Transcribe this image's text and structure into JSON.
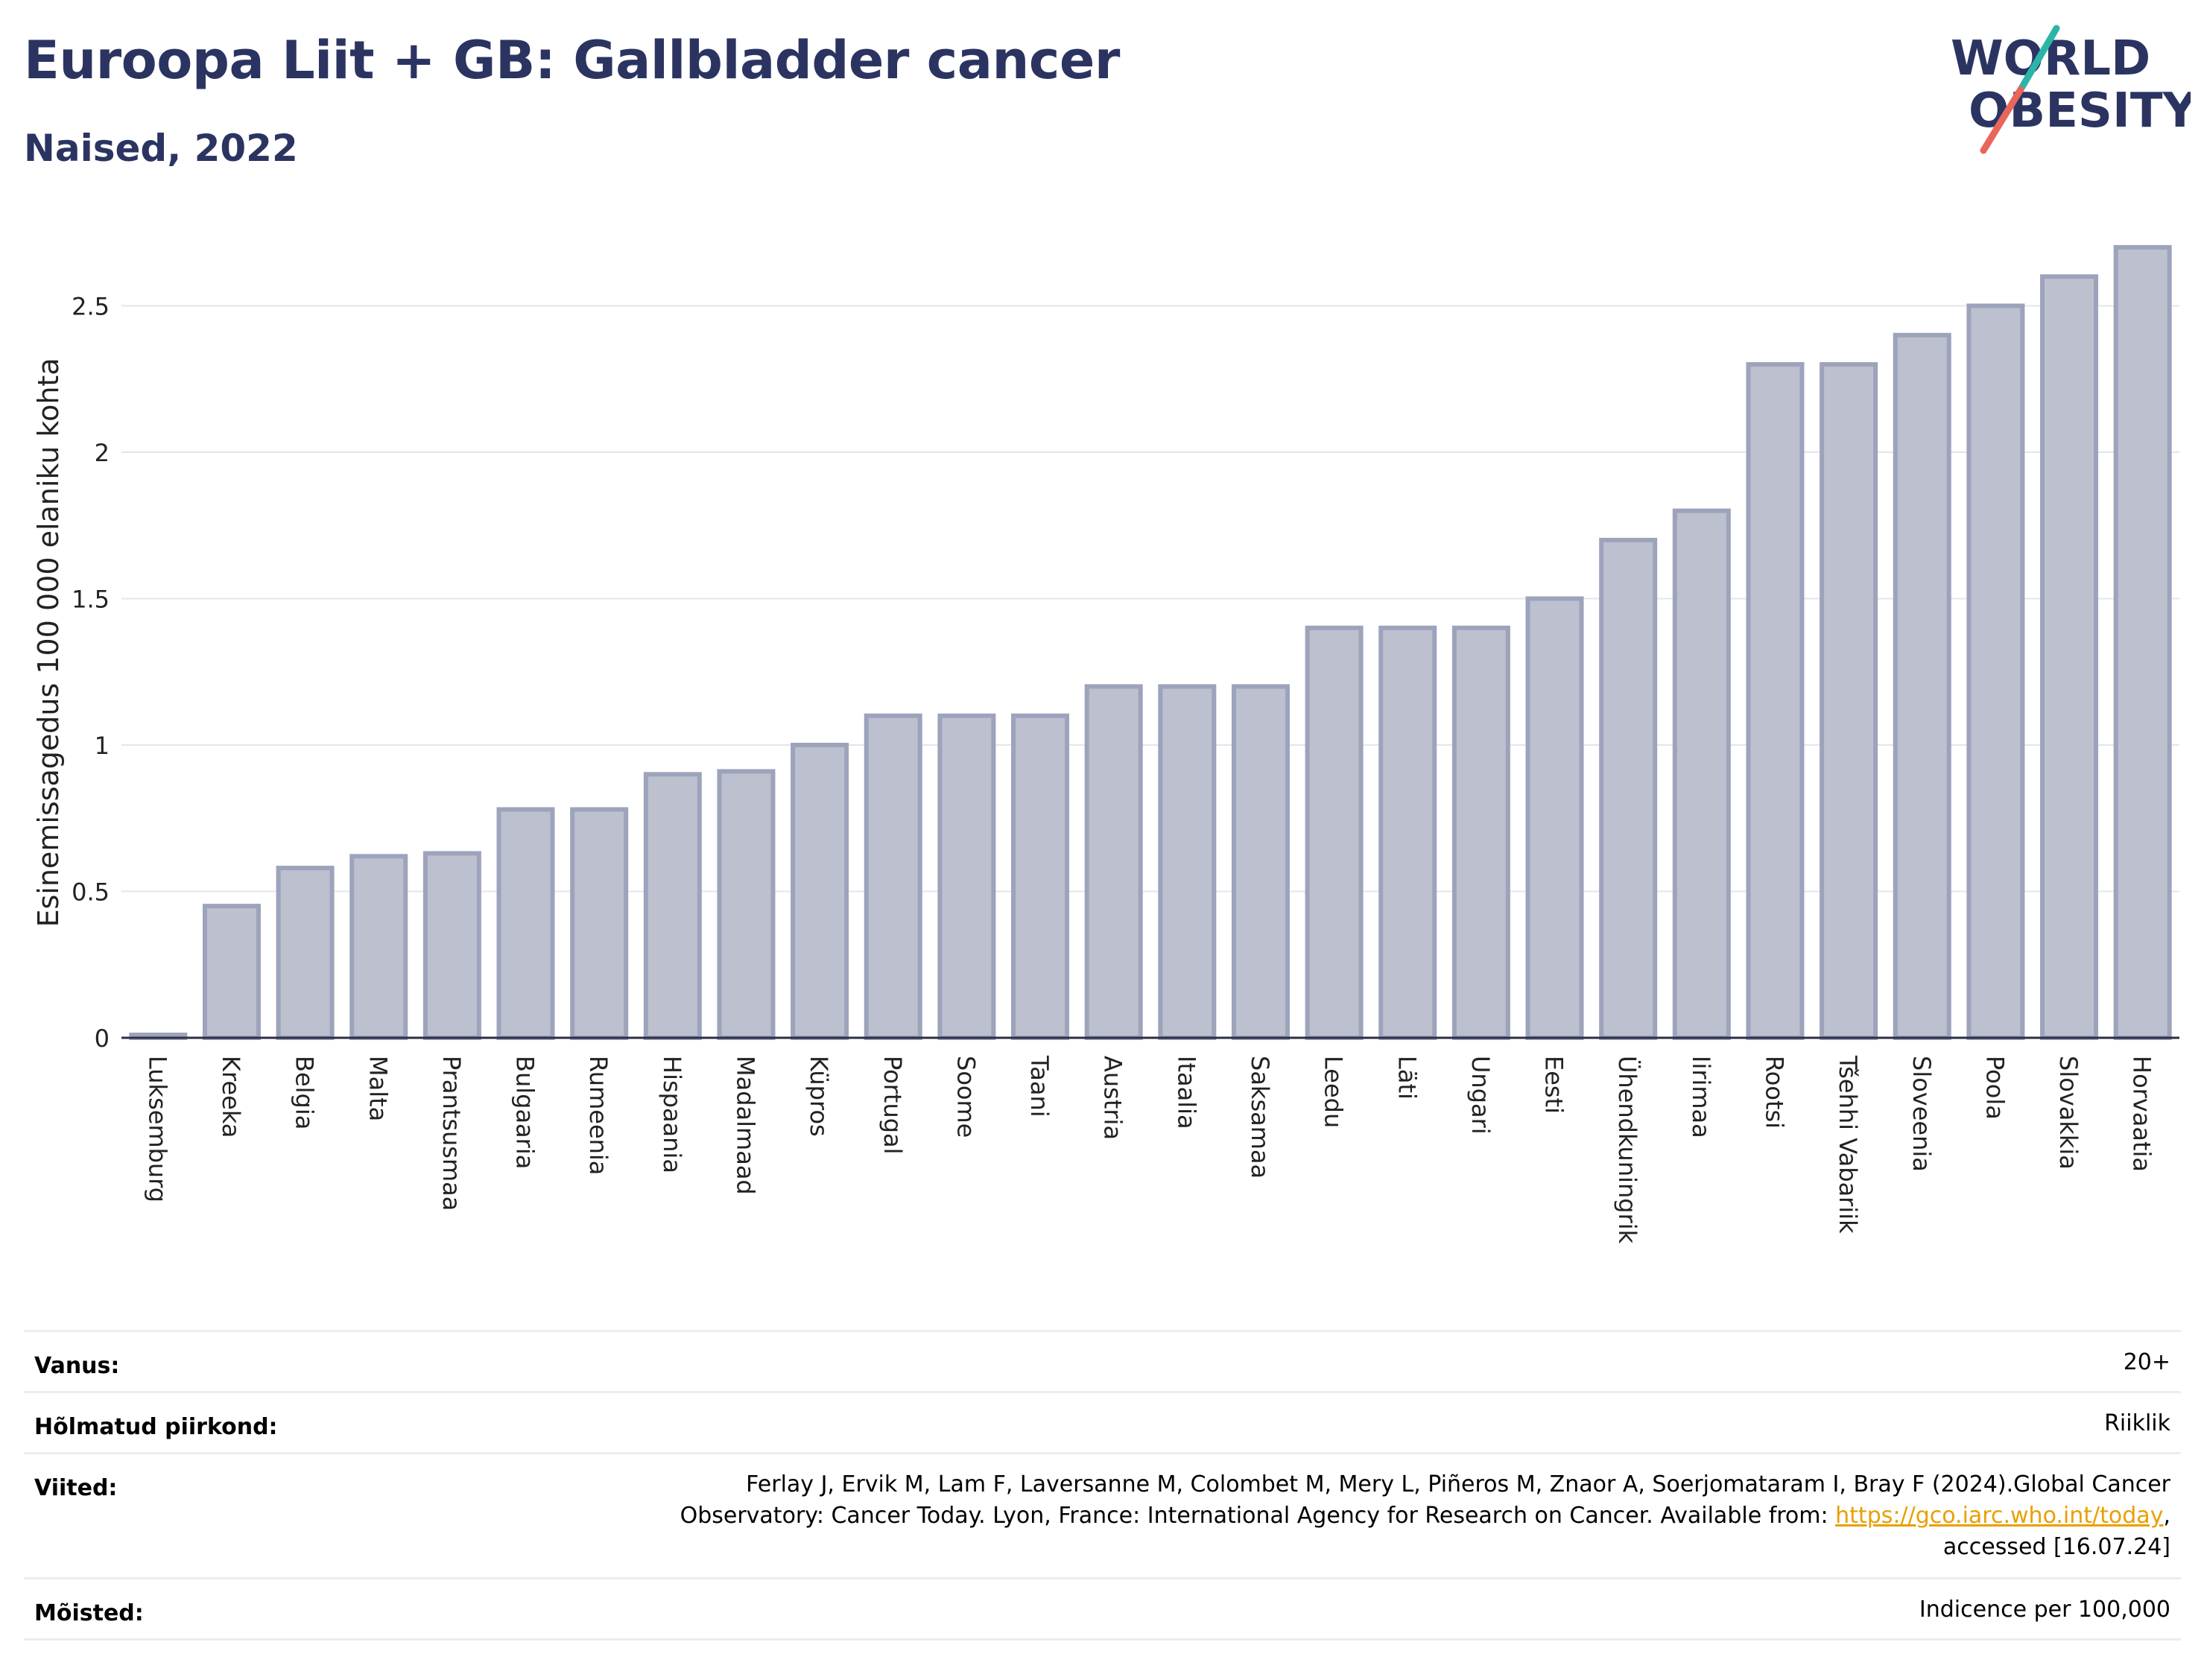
{
  "header": {
    "title": "Euroopa Liit + GB: Gallbladder cancer",
    "subtitle": "Naised, 2022"
  },
  "logo": {
    "line1": "WORLD",
    "line2": "OBESITY",
    "slash_colors": [
      "#2bb5a8",
      "#e8665a"
    ]
  },
  "chart_data": {
    "type": "bar",
    "categories": [
      "Luksemburg",
      "Kreeka",
      "Belgia",
      "Malta",
      "Prantsusmaa",
      "Bulgaaria",
      "Rumeenia",
      "Hispaania",
      "Madalmaad",
      "Küpros",
      "Portugal",
      "Soome",
      "Taani",
      "Austria",
      "Itaalia",
      "Saksamaa",
      "Leedu",
      "Läti",
      "Ungari",
      "Eesti",
      "Ühendkuningrik",
      "Iirimaa",
      "Rootsi",
      "Tšehhi Vabariik",
      "Sloveenia",
      "Poola",
      "Slovakkia",
      "Horvaatia"
    ],
    "values": [
      0.01,
      0.45,
      0.58,
      0.62,
      0.63,
      0.78,
      0.78,
      0.9,
      0.91,
      1.0,
      1.1,
      1.1,
      1.1,
      1.2,
      1.2,
      1.2,
      1.4,
      1.4,
      1.4,
      1.5,
      1.7,
      1.8,
      2.3,
      2.3,
      2.4,
      2.5,
      2.6,
      2.7
    ],
    "ylabel": "Esinemissagedus 100 000 elaniku kohta",
    "yticks": [
      0,
      0.5,
      1,
      1.5,
      2,
      2.5
    ],
    "ytick_labels": [
      "0",
      "0.5",
      "1",
      "1.5",
      "2",
      "2.5"
    ],
    "ylim": [
      0,
      2.85
    ],
    "grid": true,
    "bar_fill": "#bcc0cf",
    "bar_stroke": "#9da3bb"
  },
  "meta": [
    {
      "label": "Vanus:",
      "value": [
        "20+"
      ]
    },
    {
      "label": "Hõlmatud piirkond:",
      "value": [
        "Riiklik"
      ]
    },
    {
      "label": "Viited:",
      "value": [
        "Ferlay J, Ervik M, Lam F, Laversanne M, Colombet M, Mery L, Piñeros M, Znaor A, Soerjomataram I, Bray F (2024).Global Cancer",
        "Observatory: Cancer Today. Lyon, France: International Agency for Research on Cancer. Available from: ",
        "accessed [16.07.24]"
      ],
      "link": "https://gco.iarc.who.int/today",
      "link_suffix": ","
    },
    {
      "label": "Mõisted:",
      "value": [
        "Indicence per 100,000"
      ]
    }
  ]
}
